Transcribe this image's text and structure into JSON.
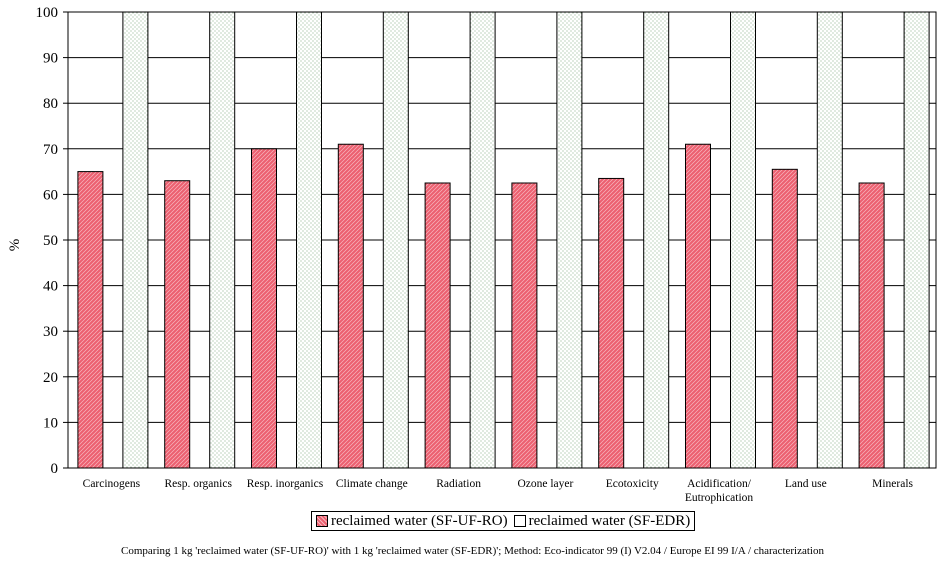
{
  "chart_data": {
    "type": "bar",
    "ylabel": "%",
    "ylim": [
      0,
      100
    ],
    "yticks": [
      0,
      10,
      20,
      30,
      40,
      50,
      60,
      70,
      80,
      90,
      100
    ],
    "grid": true,
    "categories": [
      "Carcinogens",
      "Resp. organics",
      "Resp. inorganics",
      "Climate change",
      "Radiation",
      "Ozone layer",
      "Ecotoxicity",
      "Acidification/\nEutrophication",
      "Land use",
      "Minerals"
    ],
    "series": [
      {
        "name": "reclaimed water (SF-UF-RO)",
        "color": "#ec6070",
        "values": [
          65,
          63,
          70,
          71,
          62.5,
          62.5,
          63.5,
          71,
          65.5,
          62.5
        ]
      },
      {
        "name": "reclaimed water (SF-EDR)",
        "color": "#ffffff",
        "values": [
          100,
          100,
          100,
          100,
          100,
          100,
          100,
          100,
          100,
          100
        ]
      }
    ],
    "legend_position": "bottom-center"
  },
  "legend": {
    "item1": "reclaimed water (SF-UF-RO)",
    "item2": "reclaimed water (SF-EDR)"
  },
  "caption": "Comparing 1 kg 'reclaimed water (SF-UF-RO)' with 1 kg 'reclaimed water (SF-EDR)';  Method: Eco-indicator 99 (I) V2.04 /  Europe EI 99 I/A / characterization"
}
